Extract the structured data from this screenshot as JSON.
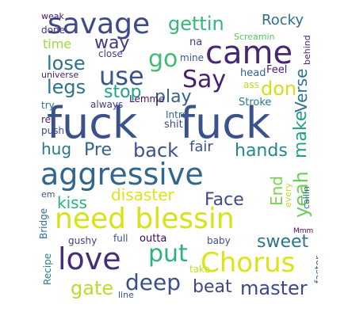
{
  "words": {
    "fuck1": {
      "text": "fuck",
      "color": "#3b518b"
    },
    "fuck2": {
      "text": "fuck",
      "color": "#3b518b"
    },
    "aggressive": {
      "text": "aggressive",
      "color": "#31668e"
    },
    "need_blessin": {
      "text": "need blessin",
      "color": "#d8e219"
    },
    "savage": {
      "text": "savage",
      "color": "#3e4989"
    },
    "came": {
      "text": "came",
      "color": "#482677"
    },
    "love": {
      "text": "love",
      "color": "#472c7a"
    },
    "chorus": {
      "text": "Chorus",
      "color": "#dde318"
    },
    "gettin": {
      "text": "gettin",
      "color": "#35b779"
    },
    "use": {
      "text": "use",
      "color": "#39568c"
    },
    "say": {
      "text": "Say",
      "color": "#482071"
    },
    "go": {
      "text": "go",
      "color": "#3fbc73"
    },
    "don": {
      "text": "don",
      "color": "#d0e11c"
    },
    "verse": {
      "text": "Verse",
      "color": "#2c728e"
    },
    "rocky": {
      "text": "Rocky",
      "color": "#2e6e8e"
    },
    "way": {
      "text": "way",
      "color": "#453781"
    },
    "lose": {
      "text": "lose",
      "color": "#2d708e"
    },
    "legs": {
      "text": "legs",
      "color": "#2c728e"
    },
    "stop": {
      "text": "stop",
      "color": "#20a486"
    },
    "play": {
      "text": "play",
      "color": "#33638d"
    },
    "back": {
      "text": "back",
      "color": "#3b528b"
    },
    "pre": {
      "text": "Pre",
      "color": "#33638d"
    },
    "hug": {
      "text": "hug",
      "color": "#2a788e"
    },
    "fair": {
      "text": "fair",
      "color": "#39558c"
    },
    "hands": {
      "text": "hands",
      "color": "#25858e"
    },
    "make": {
      "text": "make",
      "color": "#1f9e89"
    },
    "end": {
      "text": "End",
      "color": "#7ad151"
    },
    "yeah": {
      "text": "yeah",
      "color": "#6ccd5a"
    },
    "kiss": {
      "text": "kiss",
      "color": "#29af7f"
    },
    "disaster": {
      "text": "disaster",
      "color": "#dde318"
    },
    "face": {
      "text": "Face",
      "color": "#3e4a89"
    },
    "sweet": {
      "text": "sweet",
      "color": "#2b748e"
    },
    "put": {
      "text": "put",
      "color": "#2db27d"
    },
    "deep": {
      "text": "deep",
      "color": "#3b518b"
    },
    "beat": {
      "text": "beat",
      "color": "#404688"
    },
    "master": {
      "text": "master",
      "color": "#3f4788"
    },
    "gate": {
      "text": "gate",
      "color": "#b5de2b"
    },
    "time": {
      "text": "time",
      "color": "#9bd93c"
    },
    "close": {
      "text": "close",
      "color": "#443a83"
    },
    "weak": {
      "text": "weak",
      "color": "#481769"
    },
    "done": {
      "text": "done",
      "color": "#46327e"
    },
    "na": {
      "text": "na",
      "color": "#443983"
    },
    "screamin": {
      "text": "Screamin",
      "color": "#58c765"
    },
    "mine": {
      "text": "mine",
      "color": "#3b528b"
    },
    "behind": {
      "text": "behind",
      "color": "#482878"
    },
    "universe": {
      "text": "universe",
      "color": "#482173"
    },
    "head": {
      "text": "head",
      "color": "#33638d"
    },
    "feel": {
      "text": "Feel",
      "color": "#481d6f"
    },
    "ass": {
      "text": "ass",
      "color": "#b8de29"
    },
    "lemme": {
      "text": "Lemme",
      "color": "#471365"
    },
    "always": {
      "text": "always",
      "color": "#433d84"
    },
    "try": {
      "text": "try",
      "color": "#2c728e"
    },
    "stroke": {
      "text": "Stroke",
      "color": "#287c8e"
    },
    "intro": {
      "text": "Intro",
      "color": "#31688e"
    },
    "re": {
      "text": "re",
      "color": "#481f70"
    },
    "push": {
      "text": "push",
      "color": "#3e4989"
    },
    "shit": {
      "text": "shit",
      "color": "#3e4a89"
    },
    "every": {
      "text": "every",
      "color": "#bddf26"
    },
    "callin": {
      "text": "callin",
      "color": "#33638d"
    },
    "em": {
      "text": "em",
      "color": "#3b528b"
    },
    "bridge": {
      "text": "Bridge",
      "color": "#2e6e8e"
    },
    "gushy": {
      "text": "gushy",
      "color": "#443a83"
    },
    "full": {
      "text": "full",
      "color": "#3b528b"
    },
    "outta": {
      "text": "outta",
      "color": "#440154"
    },
    "baby": {
      "text": "baby",
      "color": "#3e4a89"
    },
    "mmm": {
      "text": "Mmm",
      "color": "#450457"
    },
    "recipe": {
      "text": "Recipe",
      "color": "#25838e"
    },
    "take": {
      "text": "take",
      "color": "#c2df23"
    },
    "faster": {
      "text": "faster",
      "color": "#31688e"
    },
    "line": {
      "text": "line",
      "color": "#3b528b"
    }
  }
}
